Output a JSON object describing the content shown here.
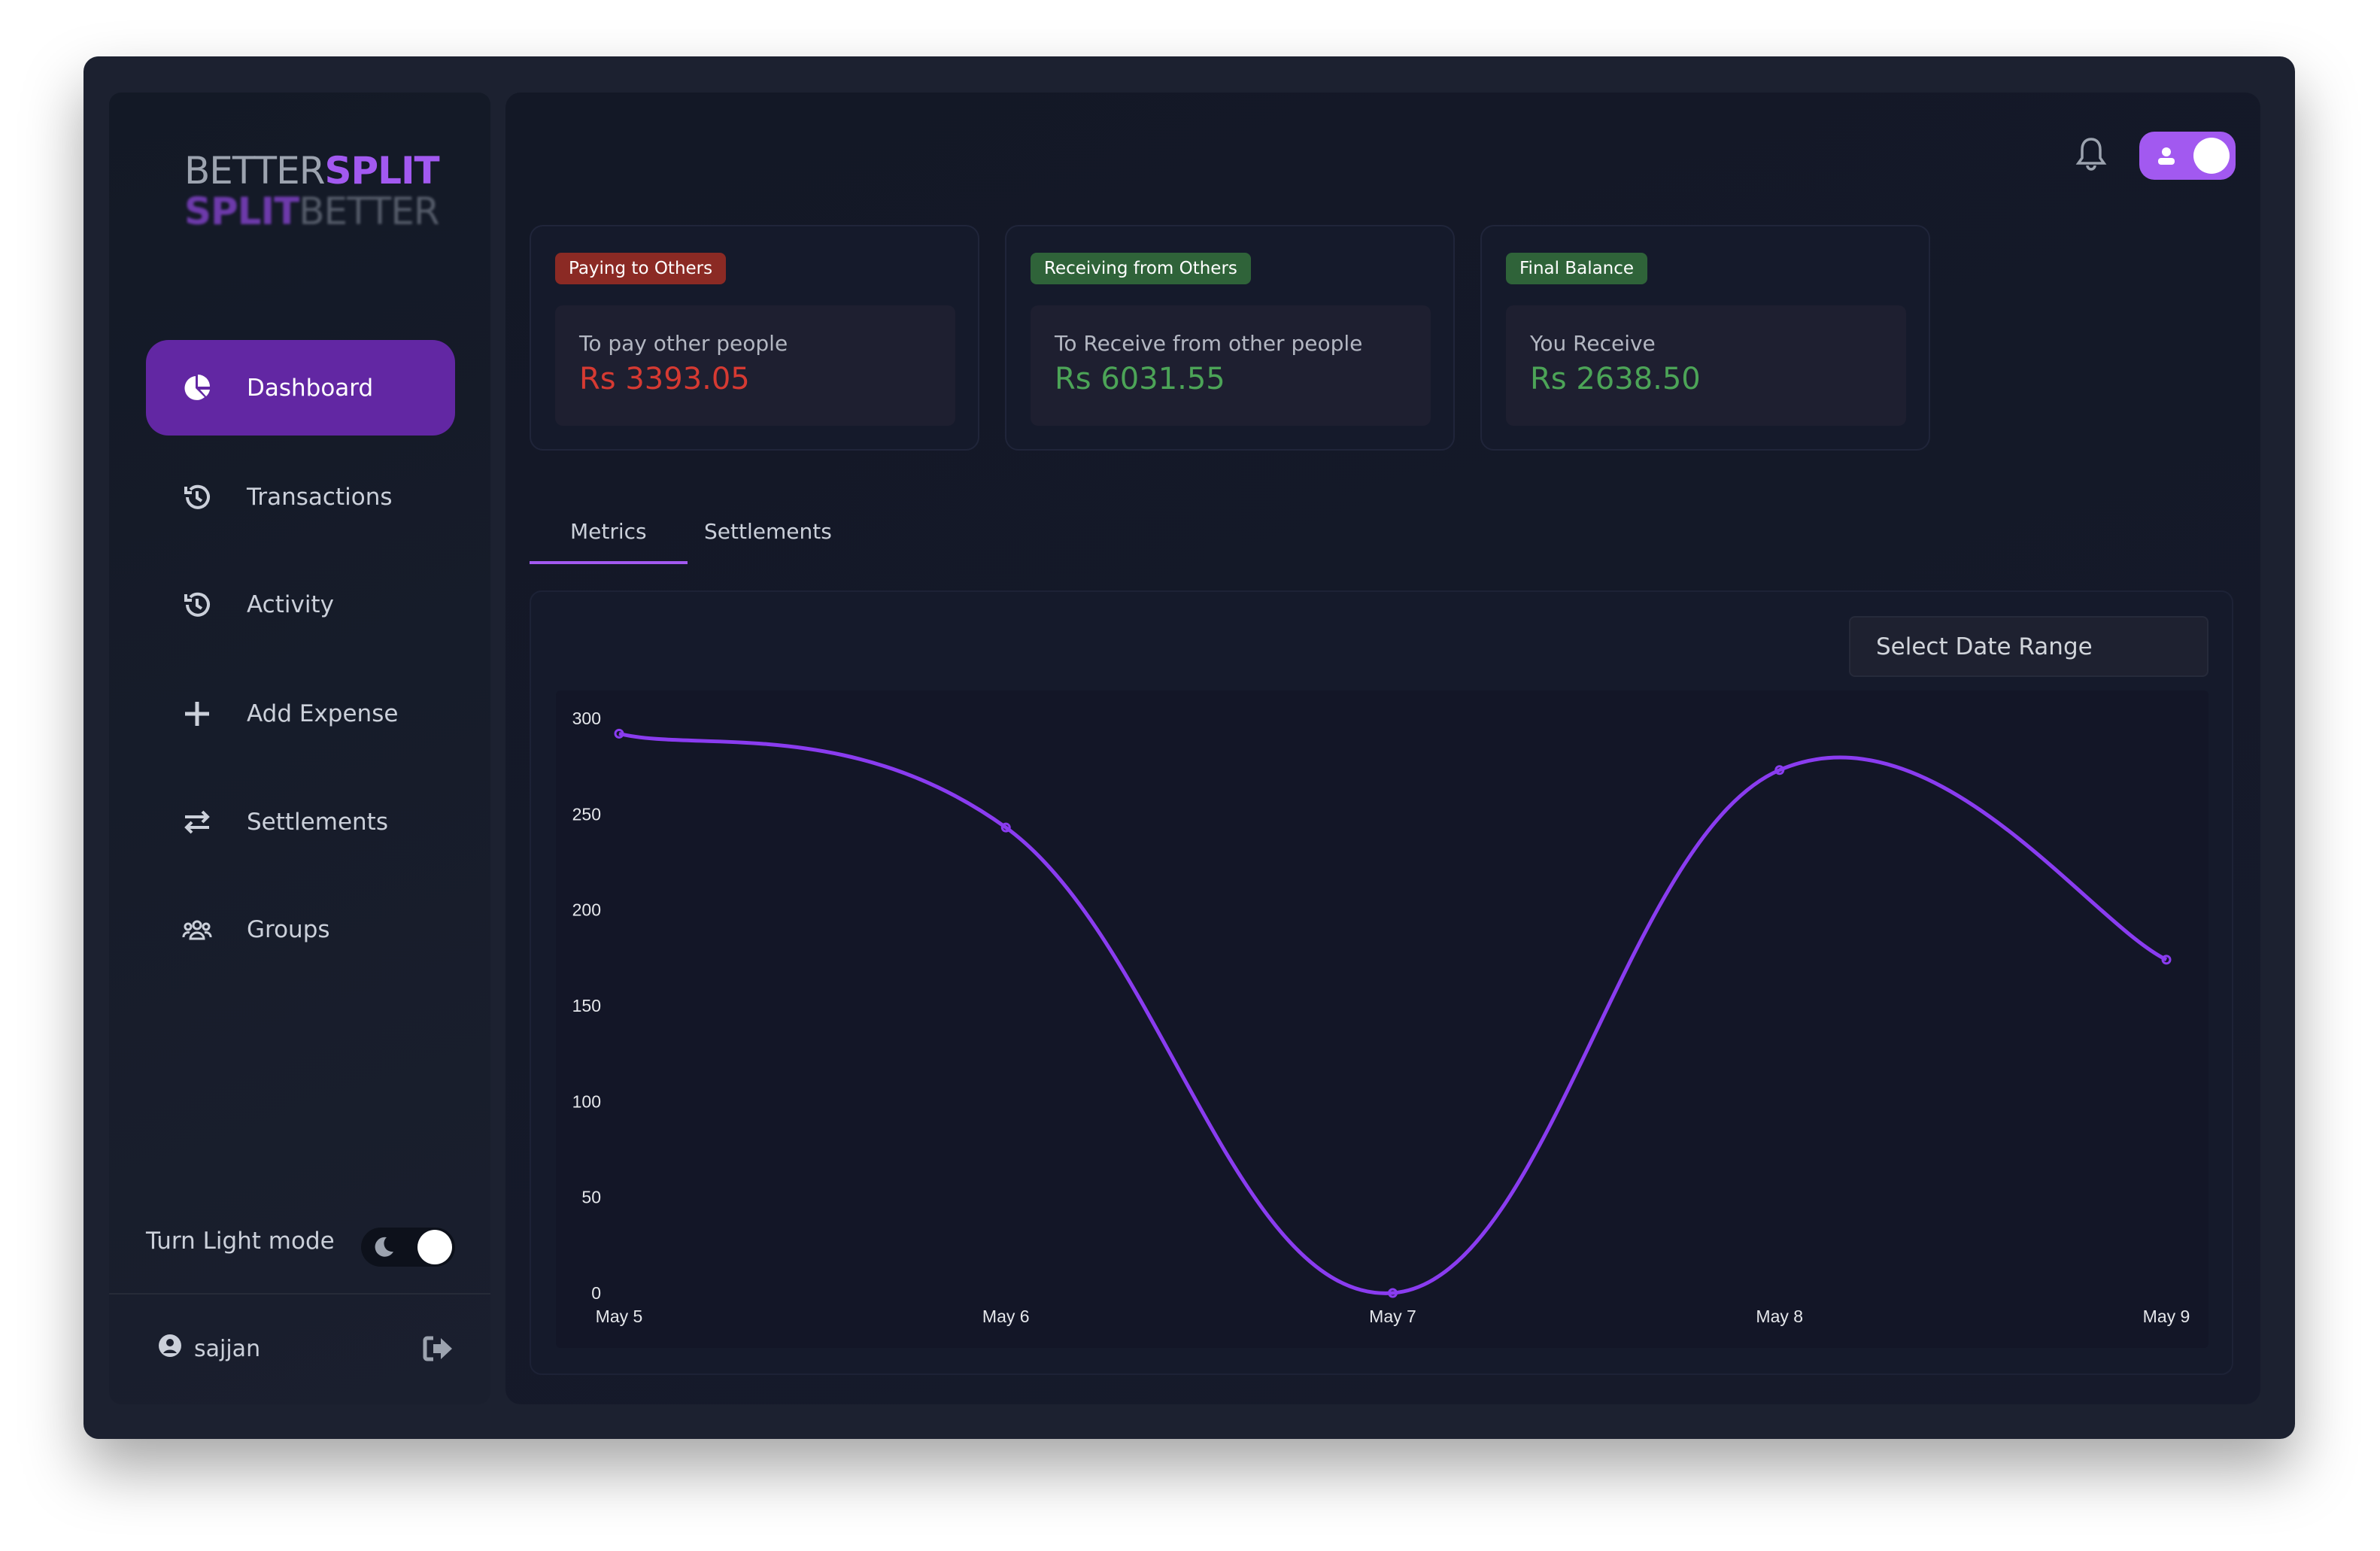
{
  "logo": {
    "line1_a": "BETTER",
    "line1_b": "SPLIT",
    "line2_a": "SPLIT",
    "line2_b": "BETTER"
  },
  "sidebar": {
    "items": [
      {
        "label": "Dashboard",
        "icon": "pie-chart-icon",
        "active": true
      },
      {
        "label": "Transactions",
        "icon": "history-icon"
      },
      {
        "label": "Activity",
        "icon": "history-icon"
      },
      {
        "label": "Add Expense",
        "icon": "plus-icon"
      },
      {
        "label": "Settlements",
        "icon": "arrows-exchange-icon"
      },
      {
        "label": "Groups",
        "icon": "users-icon"
      }
    ],
    "light_mode_label": "Turn Light mode",
    "user": "sajjan"
  },
  "cards": [
    {
      "badge": "Paying to Others",
      "badge_color": "#8b2a24",
      "label": "To pay other people",
      "amount": "Rs 3393.05",
      "amount_color": "#d63a32"
    },
    {
      "badge": "Receiving from Others",
      "badge_color": "#2f6339",
      "label": "To Receive from other people",
      "amount": "Rs 6031.55",
      "amount_color": "#4ca457"
    },
    {
      "badge": "Final Balance",
      "badge_color": "#2f6339",
      "label": "You Receive",
      "amount": "Rs 2638.50",
      "amount_color": "#4ca457"
    }
  ],
  "tabs": [
    {
      "label": "Metrics",
      "active": true
    },
    {
      "label": "Settlements"
    }
  ],
  "date_range_label": "Select Date Range",
  "chart_data": {
    "type": "line",
    "categories": [
      "May 5",
      "May 6",
      "May 7",
      "May 8",
      "May 9"
    ],
    "values": [
      292,
      243,
      0,
      273,
      174
    ],
    "yticks": [
      0,
      50,
      100,
      150,
      200,
      250,
      300
    ],
    "ylim": [
      0,
      300
    ],
    "color": "#8a3cf0",
    "grid": false
  }
}
